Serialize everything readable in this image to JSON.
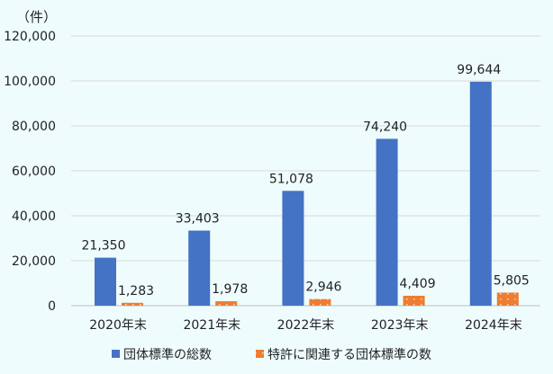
{
  "chart_data": {
    "type": "bar",
    "unit_label": "（件）",
    "categories": [
      "2020年末",
      "2021年末",
      "2022年末",
      "2023年末",
      "2024年末"
    ],
    "series": [
      {
        "name": "団体標準の総数",
        "values": [
          21350,
          33403,
          51078,
          74240,
          99644
        ],
        "labels": [
          "21,350",
          "33,403",
          "51,078",
          "74,240",
          "99,644"
        ],
        "color": "#4472c4"
      },
      {
        "name": "特許に関連する団体標準の数",
        "values": [
          1283,
          1978,
          2946,
          4409,
          5805
        ],
        "labels": [
          "1,283",
          "1,978",
          "2,946",
          "4,409",
          "5,805"
        ],
        "color": "#ed7d31"
      }
    ],
    "yticks": [
      "0",
      "20,000",
      "40,000",
      "60,000",
      "80,000",
      "100,000",
      "120,000"
    ],
    "ytick_values": [
      0,
      20000,
      40000,
      60000,
      80000,
      100000,
      120000
    ],
    "ylim": [
      0,
      120000
    ],
    "grid": true,
    "legend_position": "bottom"
  }
}
